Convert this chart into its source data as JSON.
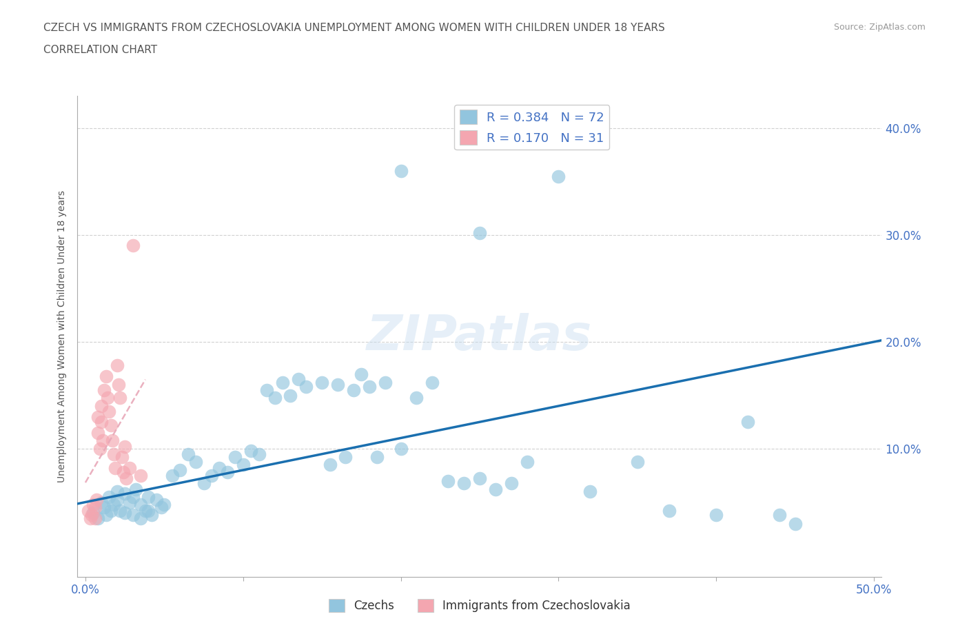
{
  "title_line1": "CZECH VS IMMIGRANTS FROM CZECHOSLOVAKIA UNEMPLOYMENT AMONG WOMEN WITH CHILDREN UNDER 18 YEARS",
  "title_line2": "CORRELATION CHART",
  "source_text": "Source: ZipAtlas.com",
  "ylabel": "Unemployment Among Women with Children Under 18 years",
  "xlim": [
    -0.005,
    0.505
  ],
  "ylim": [
    -0.02,
    0.43
  ],
  "xticks": [
    0.0,
    0.1,
    0.2,
    0.3,
    0.4,
    0.5
  ],
  "yticks": [
    0.1,
    0.2,
    0.3,
    0.4
  ],
  "xticklabels_left": "0.0%",
  "xticklabels_right": "50.0%",
  "watermark": "ZIPatlas",
  "color_czech": "#92c5de",
  "color_immigrant": "#f4a6b0",
  "color_line_czech": "#1a6faf",
  "color_line_immigrant": "#e8a8b8",
  "grid_color": "#cccccc",
  "title_color": "#555555",
  "axis_color": "#4472c4",
  "czechs_x": [
    0.005,
    0.008,
    0.01,
    0.012,
    0.013,
    0.015,
    0.016,
    0.018,
    0.02,
    0.02,
    0.022,
    0.025,
    0.025,
    0.028,
    0.03,
    0.03,
    0.032,
    0.035,
    0.035,
    0.038,
    0.04,
    0.04,
    0.042,
    0.045,
    0.048,
    0.05,
    0.055,
    0.06,
    0.065,
    0.07,
    0.075,
    0.08,
    0.085,
    0.09,
    0.095,
    0.1,
    0.105,
    0.11,
    0.115,
    0.12,
    0.125,
    0.13,
    0.135,
    0.14,
    0.15,
    0.155,
    0.16,
    0.165,
    0.17,
    0.175,
    0.18,
    0.185,
    0.19,
    0.2,
    0.21,
    0.22,
    0.23,
    0.24,
    0.25,
    0.26,
    0.27,
    0.28,
    0.3,
    0.32,
    0.35,
    0.37,
    0.4,
    0.42,
    0.44,
    0.45,
    0.2,
    0.25
  ],
  "czechs_y": [
    0.04,
    0.035,
    0.05,
    0.045,
    0.038,
    0.055,
    0.042,
    0.048,
    0.06,
    0.052,
    0.042,
    0.058,
    0.04,
    0.05,
    0.055,
    0.038,
    0.062,
    0.048,
    0.035,
    0.042,
    0.055,
    0.042,
    0.038,
    0.052,
    0.045,
    0.048,
    0.075,
    0.08,
    0.095,
    0.088,
    0.068,
    0.075,
    0.082,
    0.078,
    0.092,
    0.085,
    0.098,
    0.095,
    0.155,
    0.148,
    0.162,
    0.15,
    0.165,
    0.158,
    0.162,
    0.085,
    0.16,
    0.092,
    0.155,
    0.17,
    0.158,
    0.092,
    0.162,
    0.1,
    0.148,
    0.162,
    0.07,
    0.068,
    0.072,
    0.062,
    0.068,
    0.088,
    0.355,
    0.06,
    0.088,
    0.042,
    0.038,
    0.125,
    0.038,
    0.03,
    0.36,
    0.302
  ],
  "immigrants_x": [
    0.002,
    0.003,
    0.004,
    0.005,
    0.006,
    0.006,
    0.007,
    0.008,
    0.008,
    0.009,
    0.01,
    0.01,
    0.011,
    0.012,
    0.013,
    0.014,
    0.015,
    0.016,
    0.017,
    0.018,
    0.019,
    0.02,
    0.021,
    0.022,
    0.023,
    0.024,
    0.025,
    0.026,
    0.028,
    0.03,
    0.035
  ],
  "immigrants_y": [
    0.042,
    0.035,
    0.038,
    0.048,
    0.045,
    0.035,
    0.052,
    0.13,
    0.115,
    0.1,
    0.14,
    0.125,
    0.108,
    0.155,
    0.168,
    0.148,
    0.135,
    0.122,
    0.108,
    0.095,
    0.082,
    0.178,
    0.16,
    0.148,
    0.092,
    0.078,
    0.102,
    0.072,
    0.082,
    0.29,
    0.075
  ]
}
